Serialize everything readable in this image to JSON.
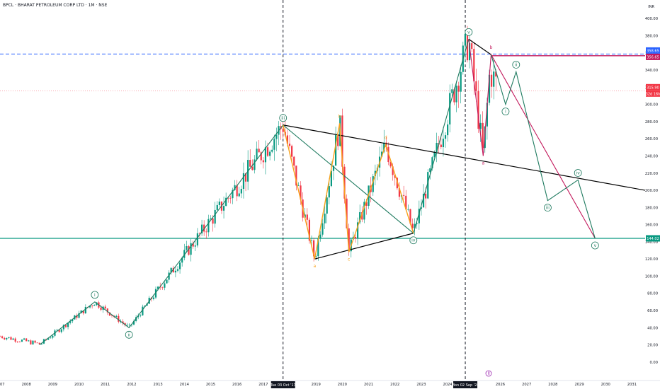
{
  "chart_title": "BPCL · BHARAT PETROLEUM CORP LTD · 1M · NSE",
  "currency": "INR",
  "chart_data": {
    "type": "candlestick",
    "x_ticks": [
      "2007",
      "2008",
      "2009",
      "2010",
      "2011",
      "2012",
      "2013",
      "2014",
      "2015",
      "2016",
      "2017",
      "2019",
      "2020",
      "2021",
      "2022",
      "2023",
      "2024",
      "2026",
      "2027",
      "2028",
      "2029",
      "2030",
      "2031"
    ],
    "date_markers": [
      "Tue 03 Oct '17",
      "Mon 02 Sep '24"
    ],
    "y_ticks": [
      0,
      20,
      40,
      60,
      80,
      100,
      120,
      140,
      160,
      180,
      200,
      220,
      240,
      260,
      280,
      300,
      320,
      340,
      360,
      380,
      400
    ],
    "ylim": [
      -10,
      415
    ],
    "xlim": [
      2007.0,
      2031.5
    ],
    "price_labels": [
      {
        "value": "358.65",
        "color": "#2962ff"
      },
      {
        "value": "356.65",
        "color": "#c2185b"
      },
      {
        "value": "315.90",
        "color": "#f23645"
      },
      {
        "value": "32d 16h",
        "color": "#f23645"
      },
      {
        "value": "144.02",
        "color": "#089981"
      }
    ],
    "levels": {
      "blue_dashed": 358.65,
      "magenta": 356.65,
      "red_current": 315.9,
      "green_support": 144.02
    },
    "anchors": [
      {
        "x": 2008.5,
        "y": 20
      },
      {
        "x": 2010.6,
        "y": 70
      },
      {
        "x": 2011.9,
        "y": 40
      },
      {
        "x": 2017.75,
        "y": 276
      },
      {
        "x": 2018.95,
        "y": 120
      },
      {
        "x": 2019.9,
        "y": 278
      },
      {
        "x": 2020.25,
        "y": 128
      },
      {
        "x": 2021.65,
        "y": 253
      },
      {
        "x": 2022.7,
        "y": 150
      },
      {
        "x": 2024.8,
        "y": 376
      },
      {
        "x": 2025.35,
        "y": 240
      },
      {
        "x": 2025.65,
        "y": 358
      },
      {
        "x": 2026.2,
        "y": 300
      },
      {
        "x": 2026.6,
        "y": 338
      },
      {
        "x": 2027.8,
        "y": 188
      },
      {
        "x": 2028.95,
        "y": 212
      },
      {
        "x": 2029.6,
        "y": 144
      },
      {
        "x": 2031.5,
        "y": 200
      }
    ],
    "wave_labels": [
      {
        "text": "i",
        "x": 2010.6,
        "y": 70,
        "style": "circle",
        "color": "#1e7a5f"
      },
      {
        "text": "ii",
        "x": 2011.9,
        "y": 40,
        "style": "circle",
        "color": "#1e7a5f"
      },
      {
        "text": "iii",
        "x": 2017.75,
        "y": 276,
        "style": "circle",
        "color": "#1e7a5f"
      },
      {
        "text": "iv",
        "x": 2022.7,
        "y": 150,
        "style": "circle",
        "color": "#1e7a5f"
      },
      {
        "text": "v",
        "x": 2024.8,
        "y": 376,
        "style": "circle",
        "color": "#1e7a5f"
      },
      {
        "text": "i",
        "x": 2026.2,
        "y": 300,
        "style": "circle",
        "color": "#1e7a5f"
      },
      {
        "text": "ii",
        "x": 2026.6,
        "y": 338,
        "style": "circle",
        "color": "#1e7a5f"
      },
      {
        "text": "iii",
        "x": 2027.8,
        "y": 188,
        "style": "circle",
        "color": "#1e7a5f"
      },
      {
        "text": "iv",
        "x": 2028.95,
        "y": 212,
        "style": "circle",
        "color": "#1e7a5f"
      },
      {
        "text": "v",
        "x": 2029.6,
        "y": 144,
        "style": "circle",
        "color": "#1e7a5f"
      },
      {
        "text": "a",
        "x": 2018.95,
        "y": 120,
        "style": "plain",
        "color": "#f7a21b"
      },
      {
        "text": "b",
        "x": 2019.9,
        "y": 278,
        "style": "plain",
        "color": "#f7a21b"
      },
      {
        "text": "c",
        "x": 2020.25,
        "y": 128,
        "style": "plain",
        "color": "#f7a21b"
      },
      {
        "text": "d",
        "x": 2021.65,
        "y": 253,
        "style": "plain",
        "color": "#f7a21b"
      },
      {
        "text": "a",
        "x": 2025.35,
        "y": 240,
        "style": "plain",
        "color": "#c2185b"
      },
      {
        "text": "b",
        "x": 2025.65,
        "y": 358,
        "style": "plain",
        "color": "#c2185b"
      }
    ],
    "colors": {
      "up": "#089981",
      "down": "#f23645",
      "green_wave": "#1e7a5f",
      "orange_wave": "#f7a21b",
      "magenta_wave": "#c2185b",
      "trend": "#000000"
    }
  }
}
